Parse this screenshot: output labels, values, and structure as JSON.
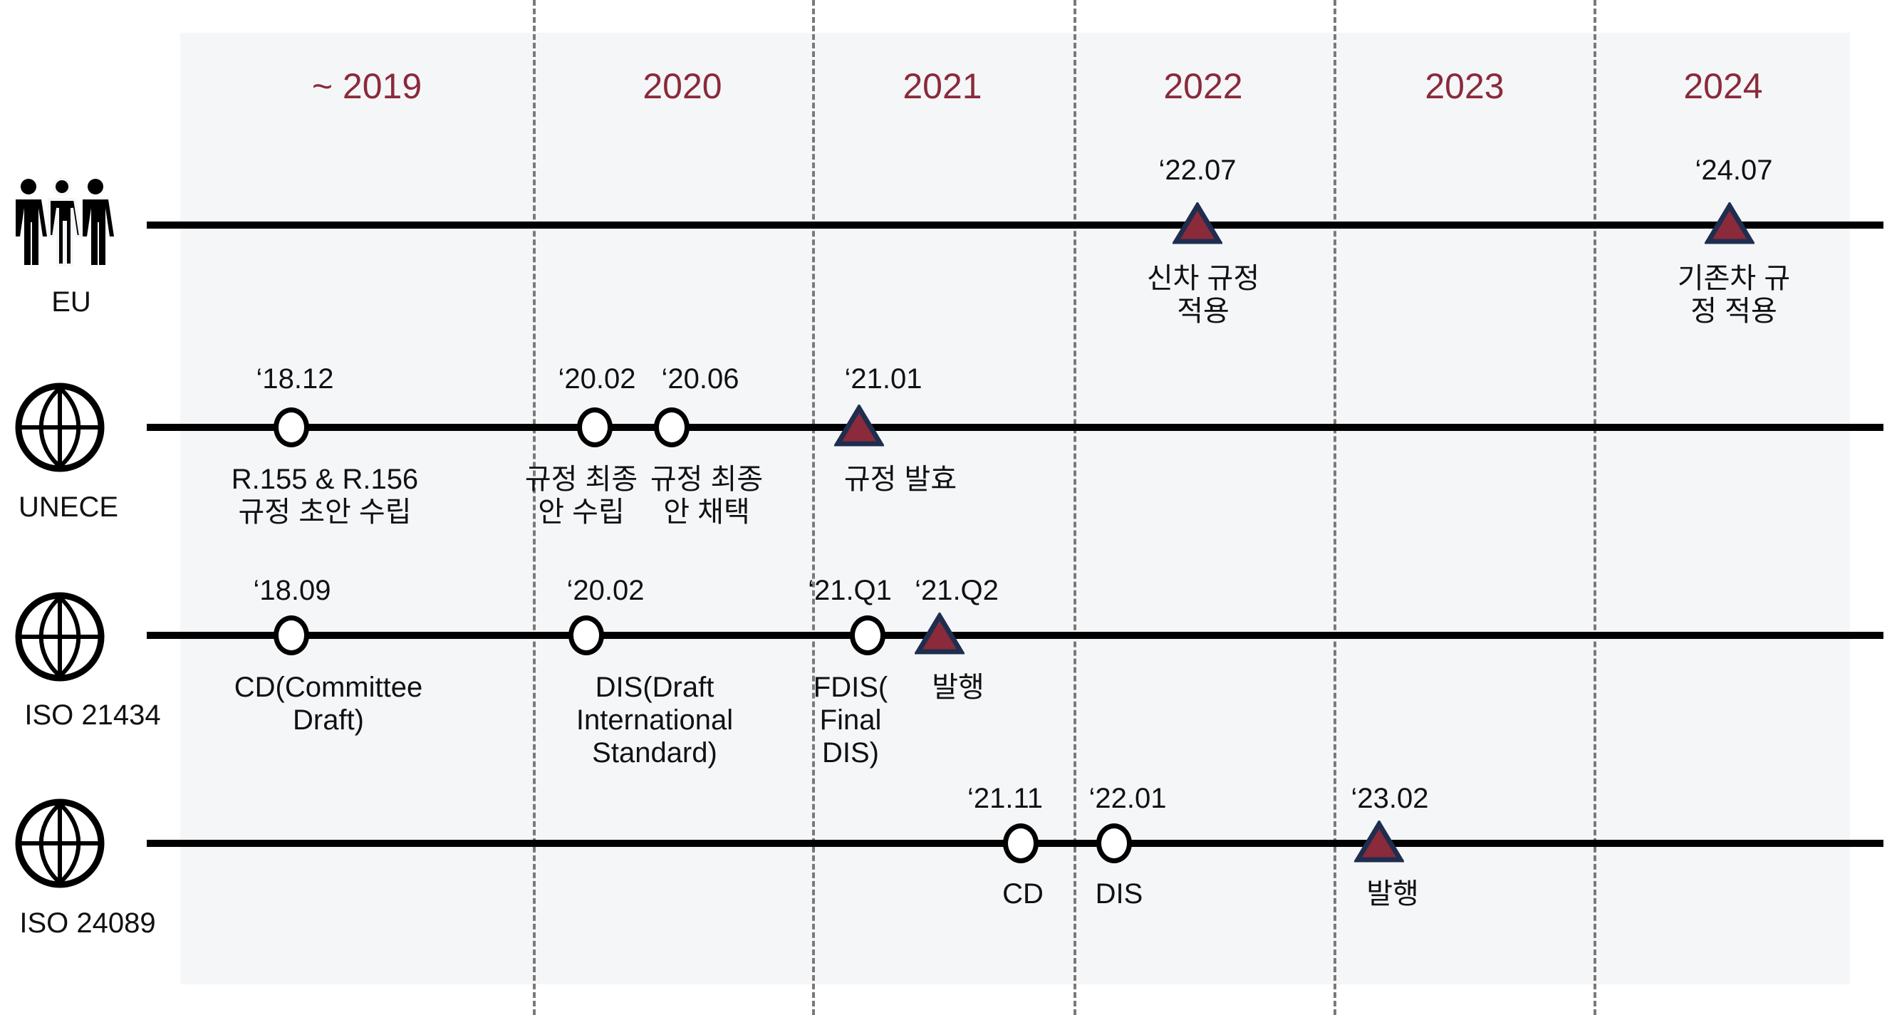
{
  "years": [
    "~ 2019",
    "2020",
    "2021",
    "2022",
    "2023",
    "2024"
  ],
  "colors": {
    "year": "#8a2a3b",
    "triangle_fill": "#8a2a3b",
    "triangle_stroke": "#1f2e4f",
    "panel": "#f5f6f8"
  },
  "rows": [
    {
      "name": "EU",
      "icon": "people-group-icon",
      "events": [
        {
          "date": "‘22.07",
          "marker": "triangle",
          "label": [
            "신차 규정",
            "적용"
          ]
        },
        {
          "date": "‘24.07",
          "marker": "triangle",
          "label": [
            "기존차 규",
            "정 적용"
          ]
        }
      ]
    },
    {
      "name": "UNECE",
      "icon": "globe-icon",
      "events": [
        {
          "date": "‘18.12",
          "marker": "circle",
          "label": [
            "R.155 & R.156",
            "규정 초안 수립"
          ]
        },
        {
          "date": "‘20.02",
          "marker": "circle",
          "label": [
            "규정 최종",
            "안 수립"
          ]
        },
        {
          "date": "‘20.06",
          "marker": "circle",
          "label": [
            "규정 최종",
            "안 채택"
          ]
        },
        {
          "date": "‘21.01",
          "marker": "triangle",
          "label": [
            "규정 발효"
          ]
        }
      ]
    },
    {
      "name": "ISO 21434",
      "icon": "globe-icon",
      "events": [
        {
          "date": "‘18.09",
          "marker": "circle",
          "label": [
            "CD(Committee",
            "Draft)"
          ]
        },
        {
          "date": "‘20.02",
          "marker": "circle",
          "label": [
            "DIS(Draft",
            "International",
            "Standard)"
          ]
        },
        {
          "date": "‘21.Q1",
          "marker": "circle",
          "label": [
            "FDIS(",
            "Final",
            "DIS)"
          ]
        },
        {
          "date": "‘21.Q2",
          "marker": "triangle",
          "label": [
            "발행"
          ]
        }
      ]
    },
    {
      "name": "ISO 24089",
      "icon": "globe-icon",
      "events": [
        {
          "date": "‘21.11",
          "marker": "circle",
          "label": [
            "CD"
          ]
        },
        {
          "date": "‘22.01",
          "marker": "circle",
          "label": [
            "DIS"
          ]
        },
        {
          "date": "‘23.02",
          "marker": "triangle",
          "label": [
            "발행"
          ]
        }
      ]
    }
  ]
}
